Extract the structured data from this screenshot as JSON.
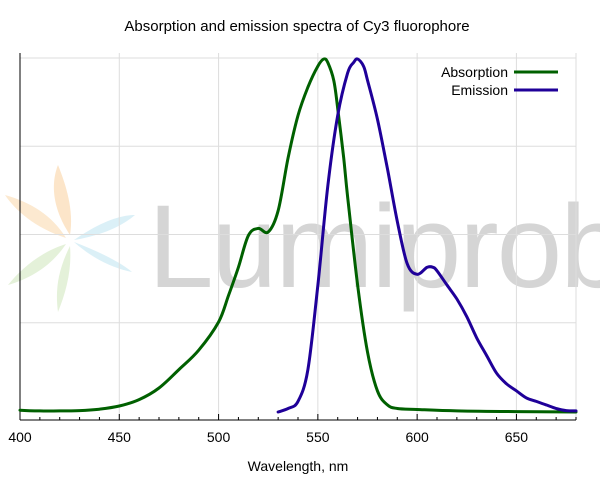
{
  "chart_data": {
    "type": "line",
    "title": "Absorption and emission spectra of Cy3 fluorophore",
    "xlabel": "Wavelength, nm",
    "ylabel": "",
    "xlim": [
      400,
      680
    ],
    "ylim": [
      0,
      1
    ],
    "xticks": [
      400,
      450,
      500,
      550,
      600,
      650
    ],
    "ygrid_values": [
      0.25,
      0.5,
      0.75,
      1.0
    ],
    "grid": true,
    "show_y_tick_labels": false,
    "legend_position": "top-right",
    "watermark": "Lumiprobe",
    "colors": {
      "absorption": "#006000",
      "emission": "#1f0099",
      "grid": "#dddddd"
    },
    "series": [
      {
        "name": "Absorption",
        "x": [
          400,
          410,
          420,
          430,
          440,
          450,
          460,
          470,
          480,
          490,
          500,
          505,
          510,
          515,
          520,
          525,
          530,
          535,
          540,
          545,
          550,
          553,
          555,
          558,
          560,
          563,
          565,
          570,
          575,
          580,
          585,
          590,
          600,
          620,
          650,
          680
        ],
        "values": [
          0.005,
          0.003,
          0.003,
          0.004,
          0.008,
          0.017,
          0.035,
          0.068,
          0.12,
          0.175,
          0.255,
          0.33,
          0.41,
          0.5,
          0.52,
          0.51,
          0.57,
          0.72,
          0.84,
          0.92,
          0.98,
          1.0,
          0.99,
          0.94,
          0.86,
          0.72,
          0.61,
          0.36,
          0.17,
          0.06,
          0.02,
          0.01,
          0.007,
          0.003,
          0.001,
          0.0
        ]
      },
      {
        "name": "Emission",
        "x": [
          530,
          535,
          540,
          545,
          550,
          555,
          560,
          565,
          568,
          570,
          573,
          575,
          580,
          585,
          590,
          595,
          600,
          605,
          608,
          610,
          615,
          620,
          625,
          630,
          635,
          640,
          645,
          650,
          655,
          660,
          665,
          670,
          675,
          680
        ],
        "values": [
          0.0,
          0.01,
          0.03,
          0.12,
          0.36,
          0.64,
          0.84,
          0.96,
          0.99,
          1.0,
          0.98,
          0.94,
          0.83,
          0.69,
          0.54,
          0.42,
          0.39,
          0.41,
          0.41,
          0.4,
          0.36,
          0.32,
          0.27,
          0.21,
          0.16,
          0.11,
          0.08,
          0.06,
          0.04,
          0.03,
          0.02,
          0.01,
          0.004,
          0.003
        ]
      }
    ]
  }
}
